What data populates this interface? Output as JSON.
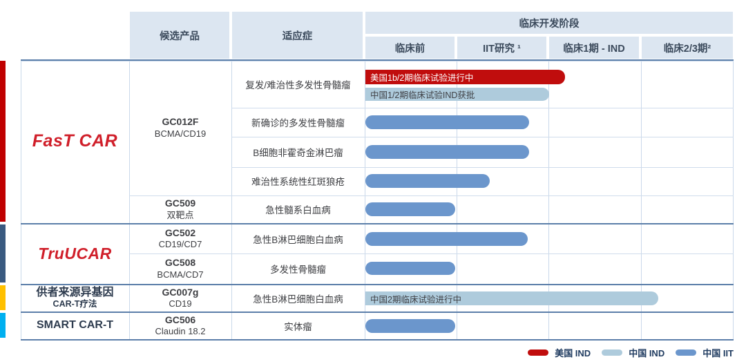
{
  "header": {
    "product": "候选产品",
    "indication": "适应症",
    "stage_group": "临床开发阶段",
    "stages": [
      "临床前",
      "IIT研究 ¹",
      "临床1期 - IND",
      "临床2/3期²"
    ]
  },
  "chart_data": {
    "type": "gantt-pipeline",
    "title": "临床开发阶段",
    "stage_axis": {
      "categories": [
        "临床前",
        "IIT研究",
        "临床1期 - IND",
        "临床2/3期"
      ],
      "range": [
        0,
        4
      ],
      "grid": true
    },
    "legend_position": "bottom-right",
    "legend": [
      {
        "series": "美国 IND",
        "color": "#C00D0D"
      },
      {
        "series": "中国 IND",
        "color": "#AECBDC"
      },
      {
        "series": "中国 IIT",
        "color": "#6B96CC"
      }
    ],
    "groups": [
      {
        "platform": "FasT CAR",
        "accent_color": "#C00000",
        "products": [
          {
            "code": "GC012F",
            "target": "BCMA/CD19",
            "rows": [
              {
                "indication": "复发/难治性多发性骨髓瘤",
                "bars": [
                  {
                    "series": "美国 IND",
                    "label": "美国1b/2期临床试验进行中",
                    "stage_extent": 2.17
                  },
                  {
                    "series": "中国 IND",
                    "label": "中国1/2期临床试验IND获批",
                    "stage_extent": 2.0
                  }
                ]
              },
              {
                "indication": "新确诊的多发性骨髓瘤",
                "bars": [
                  {
                    "series": "中国 IIT",
                    "stage_extent": 1.78
                  }
                ]
              },
              {
                "indication": "B细胞非霍奇金淋巴瘤",
                "bars": [
                  {
                    "series": "中国 IIT",
                    "stage_extent": 1.78
                  }
                ]
              },
              {
                "indication": "难治性系统性红斑狼疮",
                "bars": [
                  {
                    "series": "中国 IIT",
                    "stage_extent": 1.35
                  }
                ]
              }
            ]
          },
          {
            "code": "GC509",
            "target": "双靶点",
            "rows": [
              {
                "indication": "急性髓系白血病",
                "bars": [
                  {
                    "series": "中国 IIT",
                    "stage_extent": 0.98
                  }
                ]
              }
            ]
          }
        ]
      },
      {
        "platform": "TruUCAR",
        "accent_color": "#3A5A80",
        "products": [
          {
            "code": "GC502",
            "target": "CD19/CD7",
            "rows": [
              {
                "indication": "急性B淋巴细胞白血病",
                "bars": [
                  {
                    "series": "中国 IIT",
                    "stage_extent": 1.77
                  }
                ]
              }
            ]
          },
          {
            "code": "GC508",
            "target": "BCMA/CD7",
            "rows": [
              {
                "indication": "多发性骨髓瘤",
                "bars": [
                  {
                    "series": "中国 IIT",
                    "stage_extent": 0.98
                  }
                ]
              }
            ]
          }
        ]
      },
      {
        "platform": "供者来源异基因",
        "platform_line2": "CAR-T疗法",
        "accent_color": "#FFC000",
        "products": [
          {
            "code": "GC007g",
            "target": "CD19",
            "rows": [
              {
                "indication": "急性B淋巴细胞白血病",
                "bars": [
                  {
                    "series": "中国 IND",
                    "label": "中国2期临床试验进行中",
                    "stage_extent": 3.19
                  }
                ]
              }
            ]
          }
        ]
      },
      {
        "platform": "SMART CAR-T",
        "accent_color": "#00B0F0",
        "products": [
          {
            "code": "GC506",
            "target": "Claudin 18.2",
            "rows": [
              {
                "indication": "实体瘤",
                "bars": [
                  {
                    "series": "中国 IIT",
                    "stage_extent": 0.98
                  }
                ]
              }
            ]
          }
        ]
      }
    ]
  }
}
